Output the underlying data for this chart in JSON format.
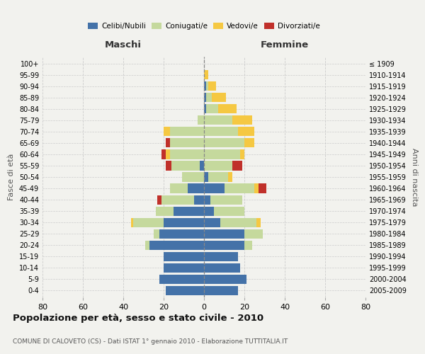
{
  "age_groups_bottom_to_top": [
    "0-4",
    "5-9",
    "10-14",
    "15-19",
    "20-24",
    "25-29",
    "30-34",
    "35-39",
    "40-44",
    "45-49",
    "50-54",
    "55-59",
    "60-64",
    "65-69",
    "70-74",
    "75-79",
    "80-84",
    "85-89",
    "90-94",
    "95-99",
    "100+"
  ],
  "birth_years_bottom_to_top": [
    "2005-2009",
    "2000-2004",
    "1995-1999",
    "1990-1994",
    "1985-1989",
    "1980-1984",
    "1975-1979",
    "1970-1974",
    "1965-1969",
    "1960-1964",
    "1955-1959",
    "1950-1954",
    "1945-1949",
    "1940-1944",
    "1935-1939",
    "1930-1934",
    "1925-1929",
    "1920-1924",
    "1915-1919",
    "1910-1914",
    "≤ 1909"
  ],
  "males": {
    "celibi": [
      19,
      22,
      20,
      20,
      27,
      22,
      20,
      15,
      5,
      8,
      0,
      2,
      0,
      0,
      0,
      0,
      0,
      0,
      0,
      0,
      0
    ],
    "coniugati": [
      0,
      0,
      0,
      0,
      2,
      3,
      15,
      9,
      16,
      9,
      11,
      14,
      17,
      17,
      17,
      3,
      0,
      0,
      0,
      0,
      0
    ],
    "vedovi": [
      0,
      0,
      0,
      0,
      0,
      0,
      1,
      0,
      0,
      0,
      0,
      0,
      2,
      0,
      3,
      0,
      0,
      0,
      0,
      0,
      0
    ],
    "divorziati": [
      0,
      0,
      0,
      0,
      0,
      0,
      0,
      0,
      2,
      0,
      0,
      3,
      2,
      2,
      0,
      0,
      0,
      0,
      0,
      0,
      0
    ]
  },
  "females": {
    "nubili": [
      17,
      21,
      18,
      17,
      20,
      20,
      8,
      5,
      3,
      10,
      2,
      0,
      0,
      0,
      0,
      0,
      1,
      1,
      1,
      0,
      0
    ],
    "coniugate": [
      0,
      0,
      0,
      0,
      4,
      9,
      18,
      15,
      16,
      15,
      10,
      14,
      18,
      20,
      17,
      14,
      6,
      3,
      1,
      0,
      0
    ],
    "vedove": [
      0,
      0,
      0,
      0,
      0,
      0,
      2,
      0,
      0,
      2,
      2,
      0,
      2,
      5,
      8,
      10,
      9,
      7,
      4,
      2,
      0
    ],
    "divorziate": [
      0,
      0,
      0,
      0,
      0,
      0,
      0,
      0,
      0,
      4,
      0,
      5,
      0,
      0,
      0,
      0,
      0,
      0,
      0,
      0,
      0
    ]
  },
  "colors": {
    "celibi": "#4472a8",
    "coniugati": "#c5d99d",
    "vedovi": "#f5c842",
    "divorziati": "#c0302a"
  },
  "xlim": 80,
  "title": "Popolazione per età, sesso e stato civile - 2010",
  "subtitle": "COMUNE DI CALOVETO (CS) - Dati ISTAT 1° gennaio 2010 - Elaborazione TUTTITALIA.IT",
  "ylabel_left": "Fasce di età",
  "ylabel_right": "Anni di nascita",
  "label_maschi": "Maschi",
  "label_femmine": "Femmine",
  "background_color": "#f2f2ee",
  "grid_color": "#cccccc"
}
